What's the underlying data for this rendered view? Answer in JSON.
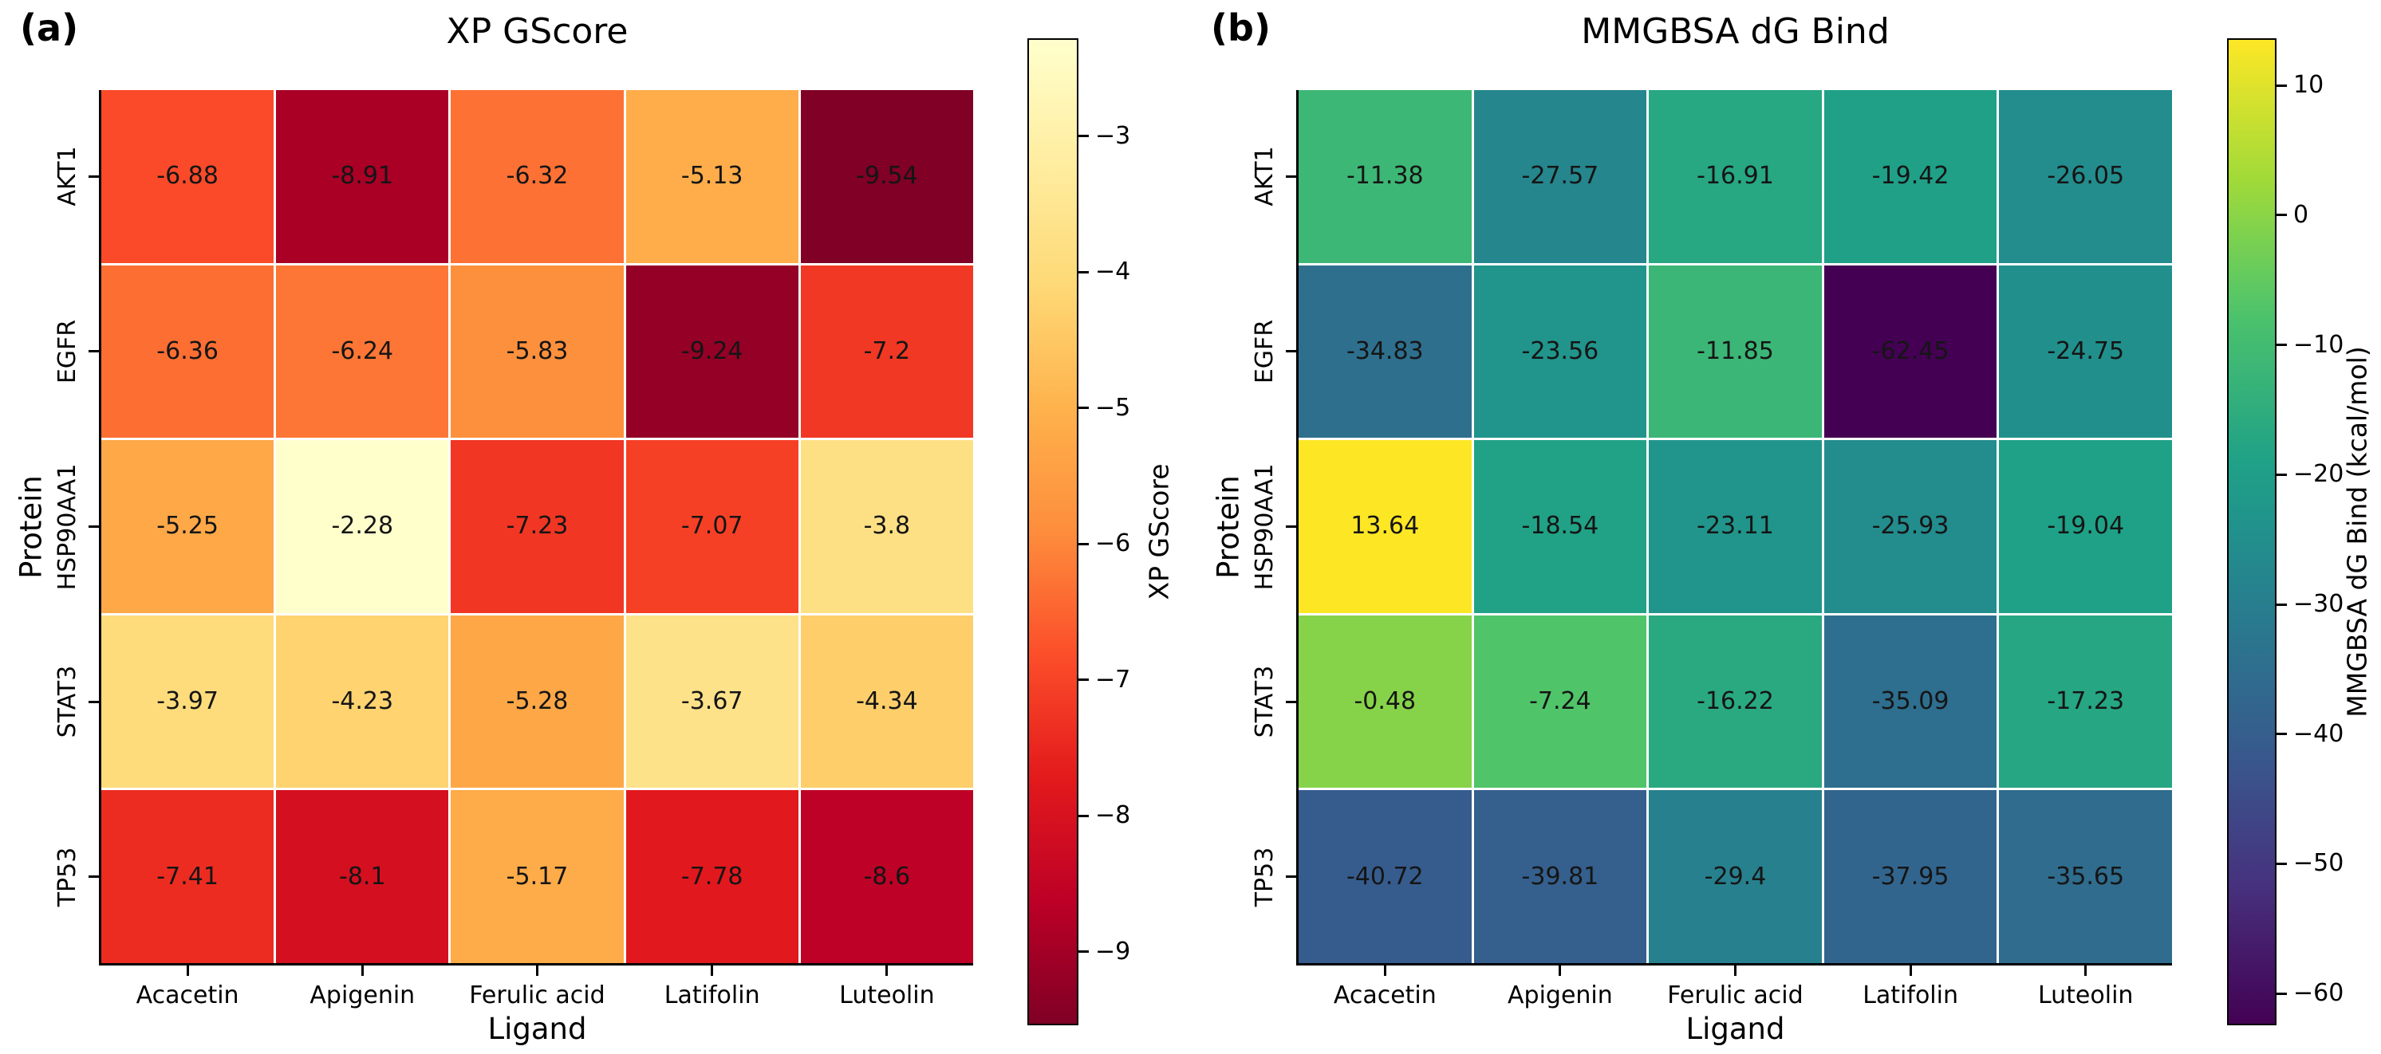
{
  "styles": {
    "background": "#ffffff",
    "axis_color": "#000000",
    "annotation_color": "#151515",
    "cell_gridline_color": "#ffffff"
  },
  "chart_data": [
    {
      "type": "heatmap",
      "panel_label": "(a)",
      "title": "XP GScore",
      "xlabel": "Ligand",
      "ylabel": "Protein",
      "x_categories": [
        "Acacetin",
        "Apigenin",
        "Ferulic acid",
        "Latifolin",
        "Luteolin"
      ],
      "y_categories": [
        "AKT1",
        "EGFR",
        "HSP90AA1",
        "STAT3",
        "TP53"
      ],
      "values": [
        [
          -6.88,
          -8.91,
          -6.32,
          -5.13,
          -9.54
        ],
        [
          -6.36,
          -6.24,
          -5.83,
          -9.24,
          -7.2
        ],
        [
          -5.25,
          -2.28,
          -7.23,
          -7.07,
          -3.8
        ],
        [
          -3.97,
          -4.23,
          -5.28,
          -3.67,
          -4.34
        ],
        [
          -7.41,
          -8.1,
          -5.17,
          -7.78,
          -8.6
        ]
      ],
      "cell_labels": [
        [
          "-6.88",
          "-8.91",
          "-6.32",
          "-5.13",
          "-9.54"
        ],
        [
          "-6.36",
          "-6.24",
          "-5.83",
          "-9.24",
          "-7.2"
        ],
        [
          "-5.25",
          "-2.28",
          "-7.23",
          "-7.07",
          "-3.8"
        ],
        [
          "-3.97",
          "-4.23",
          "-5.28",
          "-3.67",
          "-4.34"
        ],
        [
          "-7.41",
          "-8.1",
          "-5.17",
          "-7.78",
          "-8.6"
        ]
      ],
      "vmin": -9.54,
      "vmax": -2.28,
      "colormap": "YlOrRd reversed (low values dark red, high values light yellow)",
      "colormap_stops": [
        {
          "pos": 0.0,
          "color": "#800026"
        },
        {
          "pos": 0.125,
          "color": "#bd0026"
        },
        {
          "pos": 0.25,
          "color": "#e31a1c"
        },
        {
          "pos": 0.375,
          "color": "#fc4e2a"
        },
        {
          "pos": 0.5,
          "color": "#fd8d3c"
        },
        {
          "pos": 0.625,
          "color": "#feb24c"
        },
        {
          "pos": 0.75,
          "color": "#fed976"
        },
        {
          "pos": 0.875,
          "color": "#ffeda0"
        },
        {
          "pos": 1.0,
          "color": "#ffffcc"
        }
      ],
      "colorbar": {
        "label": "XP GScore",
        "position": "right",
        "tick_values": [
          -3,
          -4,
          -5,
          -6,
          -7,
          -8,
          -9
        ],
        "tick_labels": [
          "−3",
          "−4",
          "−5",
          "−6",
          "−7",
          "−8",
          "−9"
        ]
      },
      "grid": false
    },
    {
      "type": "heatmap",
      "panel_label": "(b)",
      "title": "MMGBSA dG Bind",
      "xlabel": "Ligand",
      "ylabel": "Protein",
      "x_categories": [
        "Acacetin",
        "Apigenin",
        "Ferulic acid",
        "Latifolin",
        "Luteolin"
      ],
      "y_categories": [
        "AKT1",
        "EGFR",
        "HSP90AA1",
        "STAT3",
        "TP53"
      ],
      "values": [
        [
          -11.38,
          -27.57,
          -16.91,
          -19.42,
          -26.05
        ],
        [
          -34.83,
          -23.56,
          -11.85,
          -62.45,
          -24.75
        ],
        [
          13.64,
          -18.54,
          -23.11,
          -25.93,
          -19.04
        ],
        [
          -0.48,
          -7.24,
          -16.22,
          -35.09,
          -17.23
        ],
        [
          -40.72,
          -39.81,
          -29.4,
          -37.95,
          -35.65
        ]
      ],
      "cell_labels": [
        [
          "-11.38",
          "-27.57",
          "-16.91",
          "-19.42",
          "-26.05"
        ],
        [
          "-34.83",
          "-23.56",
          "-11.85",
          "-62.45",
          "-24.75"
        ],
        [
          "13.64",
          "-18.54",
          "-23.11",
          "-25.93",
          "-19.04"
        ],
        [
          "-0.48",
          "-7.24",
          "-16.22",
          "-35.09",
          "-17.23"
        ],
        [
          "-40.72",
          "-39.81",
          "-29.4",
          "-37.95",
          "-35.65"
        ]
      ],
      "vmin": -62.45,
      "vmax": 13.64,
      "colormap": "viridis (low values dark purple, high values yellow)",
      "colormap_stops": [
        {
          "pos": 0.0,
          "color": "#440154"
        },
        {
          "pos": 0.143,
          "color": "#46327e"
        },
        {
          "pos": 0.25,
          "color": "#3b528b"
        },
        {
          "pos": 0.286,
          "color": "#365c8d"
        },
        {
          "pos": 0.429,
          "color": "#277f8e"
        },
        {
          "pos": 0.5,
          "color": "#21918c"
        },
        {
          "pos": 0.571,
          "color": "#1fa187"
        },
        {
          "pos": 0.714,
          "color": "#4ac16d"
        },
        {
          "pos": 0.75,
          "color": "#5ec962"
        },
        {
          "pos": 0.857,
          "color": "#a0da39"
        },
        {
          "pos": 1.0,
          "color": "#fde725"
        }
      ],
      "colorbar": {
        "label": "MMGBSA dG Bind (kcal/mol)",
        "position": "right",
        "tick_values": [
          10,
          0,
          -10,
          -20,
          -30,
          -40,
          -50,
          -60
        ],
        "tick_labels": [
          "10",
          "0",
          "−10",
          "−20",
          "−30",
          "−40",
          "−50",
          "−60"
        ]
      },
      "grid": false
    }
  ]
}
